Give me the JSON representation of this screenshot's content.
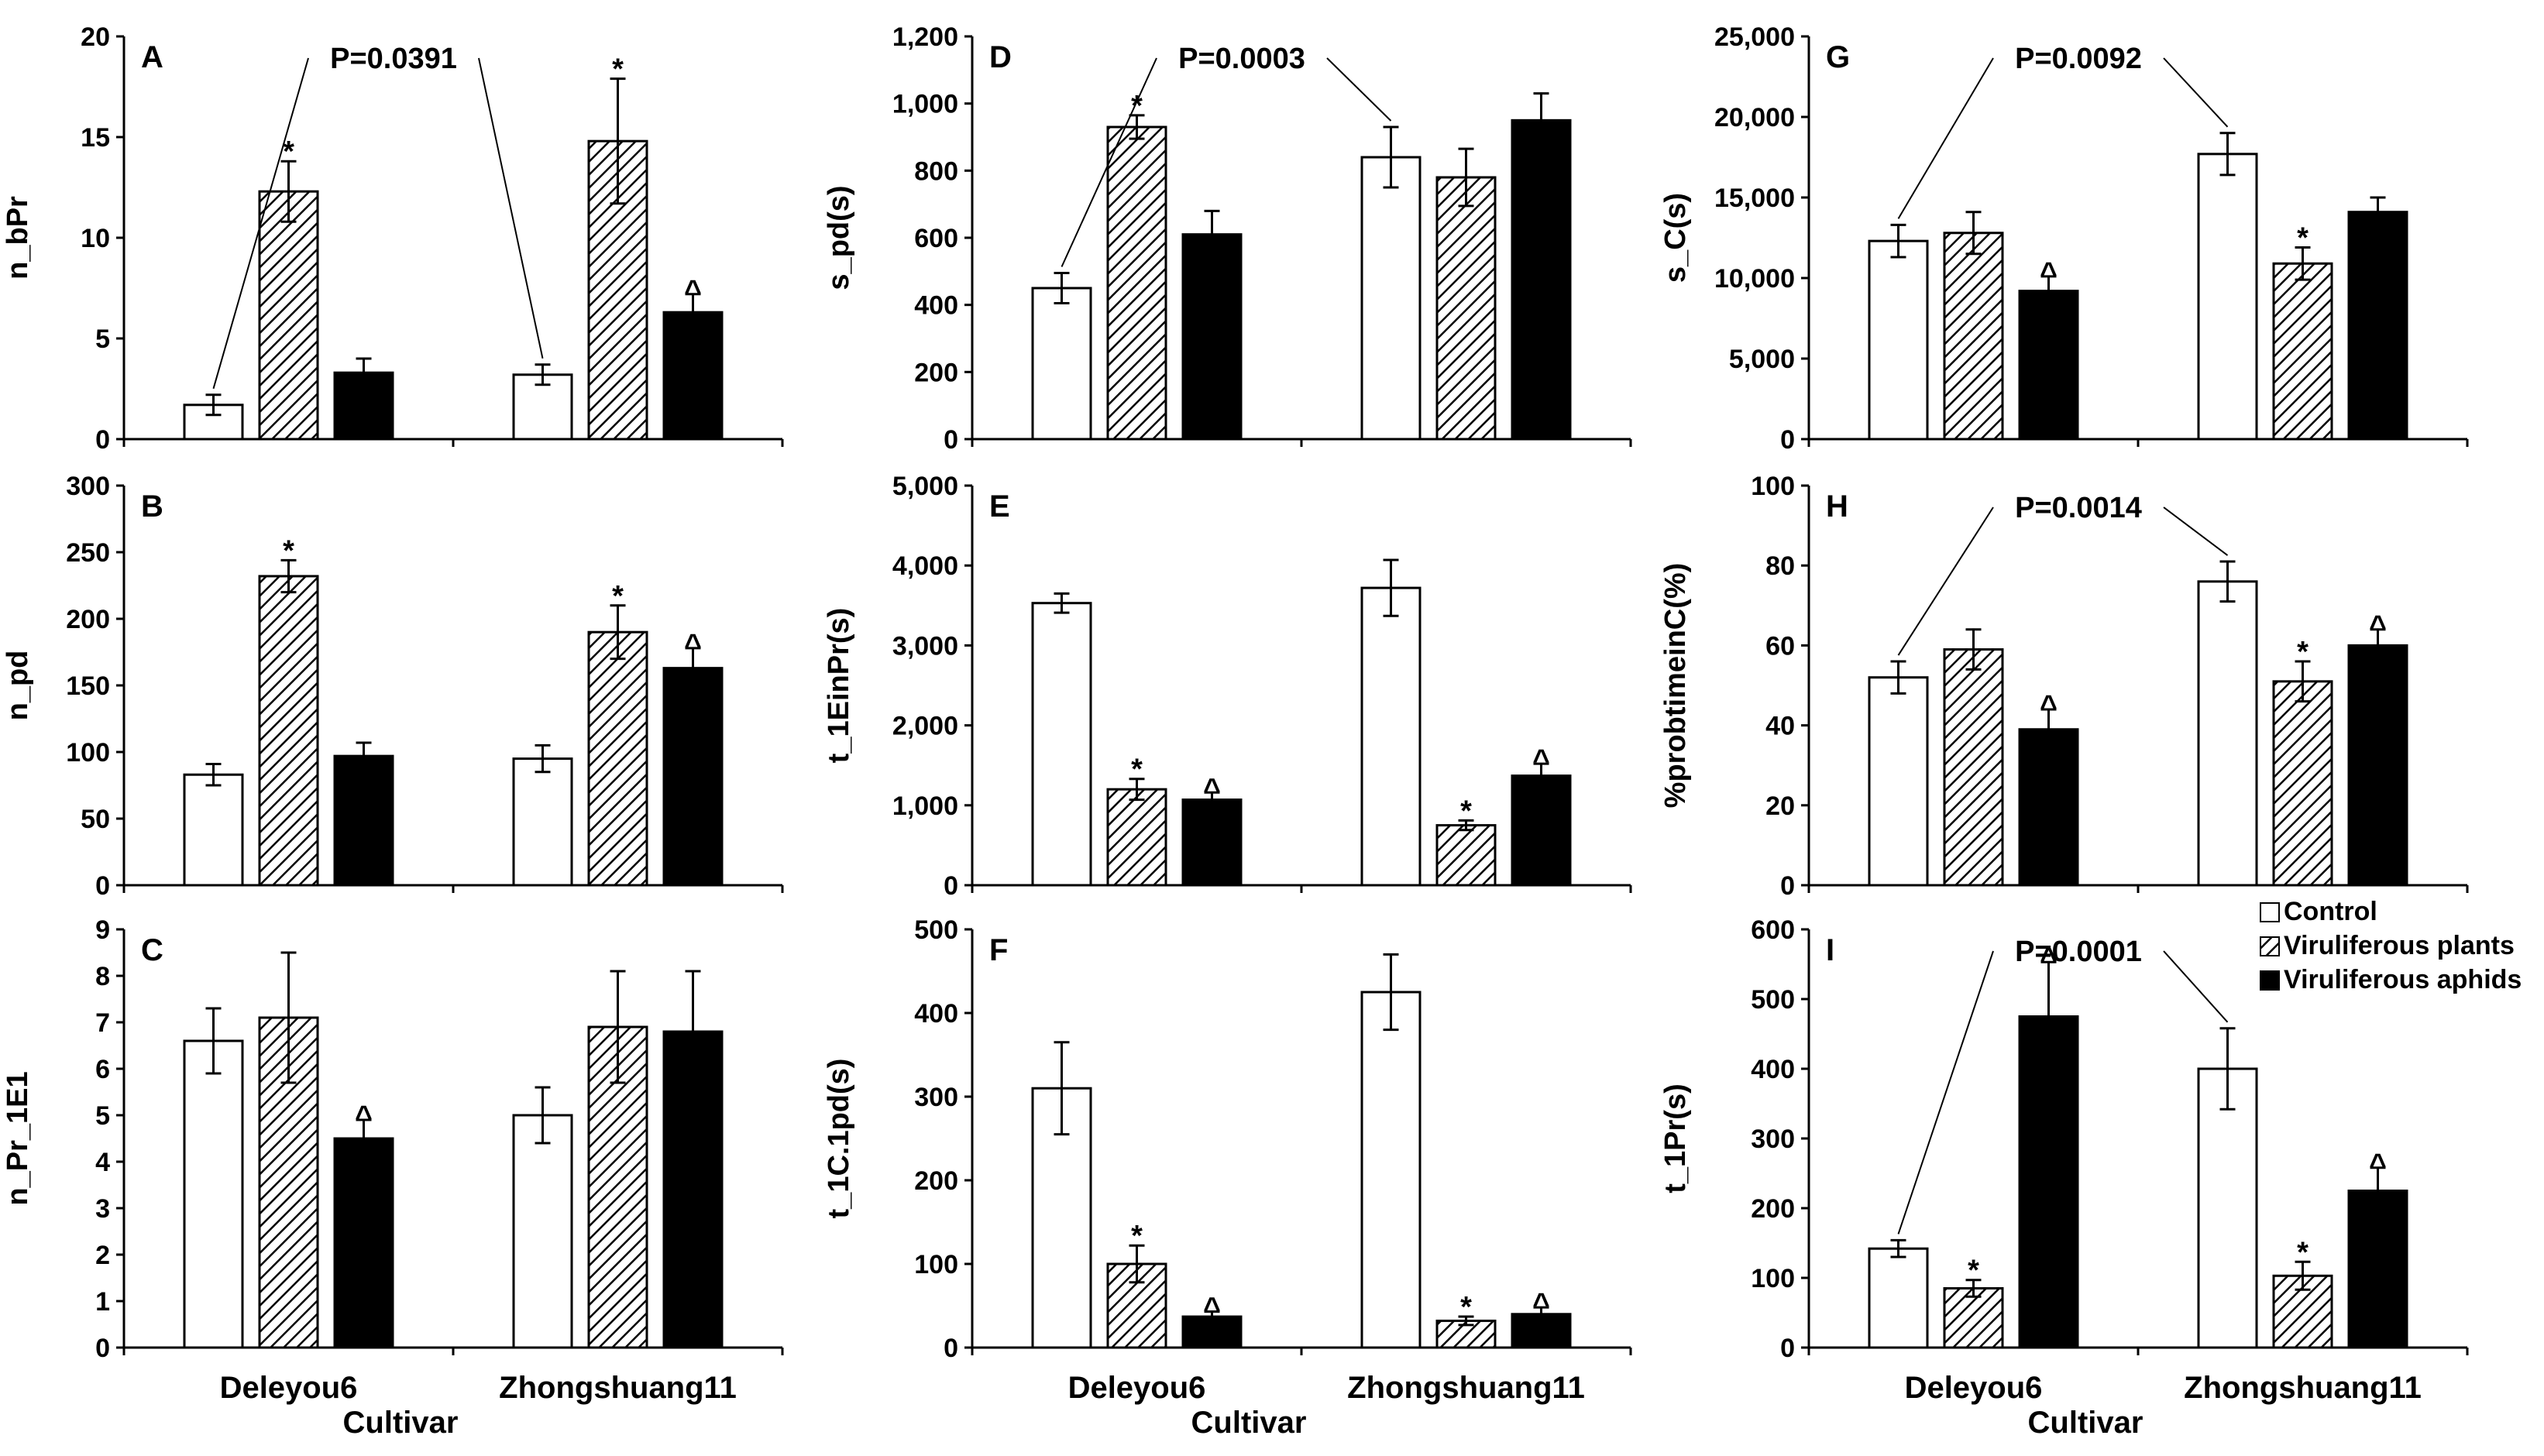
{
  "figure": {
    "categories": [
      "Deleyou6",
      "Zhongshuang11"
    ],
    "xlabel": "Cultivar",
    "legend": {
      "position": "top-right (panel I)",
      "items": [
        {
          "label": "Control",
          "pattern": "white"
        },
        {
          "label": "Viruliferous plants",
          "pattern": "hatched"
        },
        {
          "label": "Viruliferous aphids",
          "pattern": "black"
        }
      ]
    },
    "colors": {
      "control": "#ffffff",
      "plants": "hatched",
      "aphids": "#000000",
      "outline": "#000000"
    }
  },
  "chart_data": [
    {
      "panel": "A",
      "type": "bar",
      "ylabel": "n_bPr",
      "ylim": [
        0,
        20
      ],
      "yticks": [
        0,
        5,
        10,
        15,
        20
      ],
      "categories": [
        "Deleyou6",
        "Zhongshuang11"
      ],
      "series": [
        {
          "name": "Control",
          "values": [
            1.7,
            3.2
          ],
          "errors": [
            0.5,
            0.5
          ],
          "marks": [
            "",
            ""
          ]
        },
        {
          "name": "Viruliferous plants",
          "values": [
            12.3,
            14.8
          ],
          "errors": [
            1.5,
            3.1
          ],
          "marks": [
            "*",
            "*"
          ]
        },
        {
          "name": "Viruliferous aphids",
          "values": [
            3.3,
            6.3
          ],
          "errors": [
            0.7,
            0.9
          ],
          "marks": [
            "",
            "^"
          ]
        }
      ],
      "pvalue": {
        "text": "P=0.0391",
        "from": [
          0,
          0
        ],
        "to": [
          1,
          0
        ]
      }
    },
    {
      "panel": "B",
      "type": "bar",
      "ylabel": "n_pd",
      "ylim": [
        0,
        300
      ],
      "yticks": [
        0,
        50,
        100,
        150,
        200,
        250,
        300
      ],
      "categories": [
        "Deleyou6",
        "Zhongshuang11"
      ],
      "series": [
        {
          "name": "Control",
          "values": [
            83,
            95
          ],
          "errors": [
            8,
            10
          ],
          "marks": [
            "",
            ""
          ]
        },
        {
          "name": "Viruliferous plants",
          "values": [
            232,
            190
          ],
          "errors": [
            12,
            20
          ],
          "marks": [
            "*",
            "*"
          ]
        },
        {
          "name": "Viruliferous aphids",
          "values": [
            97,
            163
          ],
          "errors": [
            10,
            15
          ],
          "marks": [
            "",
            "^"
          ]
        }
      ]
    },
    {
      "panel": "C",
      "type": "bar",
      "ylabel": "n_Pr_1E1",
      "ylim": [
        0,
        9
      ],
      "yticks": [
        0,
        1,
        2,
        3,
        4,
        5,
        6,
        7,
        8,
        9
      ],
      "categories": [
        "Deleyou6",
        "Zhongshuang11"
      ],
      "series": [
        {
          "name": "Control",
          "values": [
            6.6,
            5.0
          ],
          "errors": [
            0.7,
            0.6
          ],
          "marks": [
            "",
            ""
          ]
        },
        {
          "name": "Viruliferous plants",
          "values": [
            7.1,
            6.9
          ],
          "errors": [
            1.4,
            1.2
          ],
          "marks": [
            "",
            ""
          ]
        },
        {
          "name": "Viruliferous aphids",
          "values": [
            4.5,
            6.8
          ],
          "errors": [
            0.4,
            1.3
          ],
          "marks": [
            "^",
            ""
          ]
        }
      ]
    },
    {
      "panel": "D",
      "type": "bar",
      "ylabel": "s_pd(s)",
      "ylim": [
        0,
        1200
      ],
      "yticks": [
        "0",
        "200",
        "400",
        "600",
        "800",
        "1,000",
        "1,200"
      ],
      "categories": [
        "Deleyou6",
        "Zhongshuang11"
      ],
      "series": [
        {
          "name": "Control",
          "values": [
            450,
            840
          ],
          "errors": [
            45,
            90
          ],
          "marks": [
            "",
            ""
          ]
        },
        {
          "name": "Viruliferous plants",
          "values": [
            930,
            780
          ],
          "errors": [
            35,
            85
          ],
          "marks": [
            "*",
            ""
          ]
        },
        {
          "name": "Viruliferous aphids",
          "values": [
            610,
            950
          ],
          "errors": [
            70,
            80
          ],
          "marks": [
            "",
            ""
          ]
        }
      ],
      "pvalue": {
        "text": "P=0.0003",
        "from": [
          0,
          0
        ],
        "to": [
          1,
          0
        ]
      }
    },
    {
      "panel": "E",
      "type": "bar",
      "ylabel": "t_1EinPr(s)",
      "ylim": [
        0,
        5000
      ],
      "yticks": [
        "0",
        "1,000",
        "2,000",
        "3,000",
        "4,000",
        "5,000"
      ],
      "categories": [
        "Deleyou6",
        "Zhongshuang11"
      ],
      "series": [
        {
          "name": "Control",
          "values": [
            3530,
            3720
          ],
          "errors": [
            120,
            350
          ],
          "marks": [
            "",
            ""
          ]
        },
        {
          "name": "Viruliferous plants",
          "values": [
            1200,
            750
          ],
          "errors": [
            130,
            60
          ],
          "marks": [
            "*",
            "*"
          ]
        },
        {
          "name": "Viruliferous aphids",
          "values": [
            1070,
            1370
          ],
          "errors": [
            90,
            150
          ],
          "marks": [
            "^",
            "^"
          ]
        }
      ]
    },
    {
      "panel": "F",
      "type": "bar",
      "ylabel": "t_1C.1pd(s)",
      "ylim": [
        0,
        500
      ],
      "yticks": [
        0,
        100,
        200,
        300,
        400,
        500
      ],
      "categories": [
        "Deleyou6",
        "Zhongshuang11"
      ],
      "series": [
        {
          "name": "Control",
          "values": [
            310,
            425
          ],
          "errors": [
            55,
            45
          ],
          "marks": [
            "",
            ""
          ]
        },
        {
          "name": "Viruliferous plants",
          "values": [
            100,
            32
          ],
          "errors": [
            22,
            5
          ],
          "marks": [
            "*",
            "*"
          ]
        },
        {
          "name": "Viruliferous aphids",
          "values": [
            37,
            40
          ],
          "errors": [
            6,
            8
          ],
          "marks": [
            "^",
            "^"
          ]
        }
      ]
    },
    {
      "panel": "G",
      "type": "bar",
      "ylabel": "s_C(s)",
      "ylim": [
        0,
        25000
      ],
      "yticks": [
        "0",
        "5,000",
        "10,000",
        "15,000",
        "20,000",
        "25,000"
      ],
      "categories": [
        "Deleyou6",
        "Zhongshuang11"
      ],
      "series": [
        {
          "name": "Control",
          "values": [
            12300,
            17700
          ],
          "errors": [
            1000,
            1300
          ],
          "marks": [
            "",
            ""
          ]
        },
        {
          "name": "Viruliferous plants",
          "values": [
            12800,
            10900
          ],
          "errors": [
            1300,
            1000
          ],
          "marks": [
            "",
            "*"
          ]
        },
        {
          "name": "Viruliferous aphids",
          "values": [
            9200,
            14100
          ],
          "errors": [
            900,
            900
          ],
          "marks": [
            "^",
            ""
          ]
        }
      ],
      "pvalue": {
        "text": "P=0.0092",
        "from": [
          0,
          0
        ],
        "to": [
          1,
          0
        ]
      }
    },
    {
      "panel": "H",
      "type": "bar",
      "ylabel": "%probtimeinC(%)",
      "ylim": [
        0,
        100
      ],
      "yticks": [
        0,
        20,
        40,
        60,
        80,
        100
      ],
      "categories": [
        "Deleyou6",
        "Zhongshuang11"
      ],
      "series": [
        {
          "name": "Control",
          "values": [
            52,
            76
          ],
          "errors": [
            4,
            5
          ],
          "marks": [
            "",
            ""
          ]
        },
        {
          "name": "Viruliferous plants",
          "values": [
            59,
            51
          ],
          "errors": [
            5,
            5
          ],
          "marks": [
            "",
            "*"
          ]
        },
        {
          "name": "Viruliferous aphids",
          "values": [
            39,
            60
          ],
          "errors": [
            5,
            4
          ],
          "marks": [
            "^",
            "^"
          ]
        }
      ],
      "pvalue": {
        "text": "P=0.0014",
        "from": [
          0,
          0
        ],
        "to": [
          1,
          0
        ]
      }
    },
    {
      "panel": "I",
      "type": "bar",
      "ylabel": "t_1Pr(s)",
      "ylim": [
        0,
        600
      ],
      "yticks": [
        0,
        100,
        200,
        300,
        400,
        500,
        600
      ],
      "categories": [
        "Deleyou6",
        "Zhongshuang11"
      ],
      "series": [
        {
          "name": "Control",
          "values": [
            142,
            400
          ],
          "errors": [
            12,
            58
          ],
          "marks": [
            "",
            ""
          ]
        },
        {
          "name": "Viruliferous plants",
          "values": [
            85,
            103
          ],
          "errors": [
            12,
            20
          ],
          "marks": [
            "*",
            "*"
          ]
        },
        {
          "name": "Viruliferous aphids",
          "values": [
            475,
            225
          ],
          "errors": [
            78,
            33
          ],
          "marks": [
            "^",
            "^"
          ]
        }
      ],
      "pvalue": {
        "text": "P=0.0001",
        "from": [
          0,
          0
        ],
        "to": [
          1,
          0
        ]
      }
    }
  ]
}
